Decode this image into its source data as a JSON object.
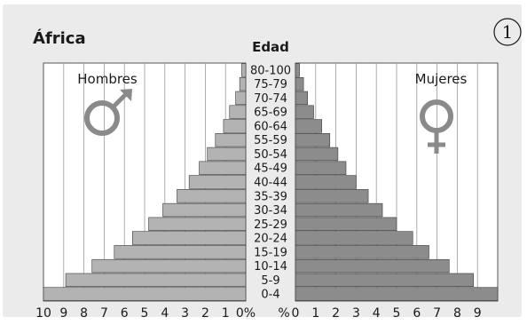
{
  "chart_data": {
    "type": "bar",
    "subtype": "population-pyramid",
    "title": "África",
    "badge": "1",
    "y_axis_title": "Edad",
    "age_groups": [
      "80-100",
      "75-79",
      "70-74",
      "65-69",
      "60-64",
      "55-59",
      "50-54",
      "45-49",
      "40-44",
      "35-39",
      "30-34",
      "25-29",
      "20-24",
      "15-19",
      "10-14",
      "5-9",
      "0-4"
    ],
    "series": [
      {
        "name": "Hombres",
        "side": "left",
        "color": "#b3b3b3",
        "values": [
          0.2,
          0.3,
          0.5,
          0.8,
          1.1,
          1.5,
          1.9,
          2.3,
          2.8,
          3.4,
          4.1,
          4.8,
          5.6,
          6.5,
          7.6,
          8.9,
          10.3
        ]
      },
      {
        "name": "Mujeres",
        "side": "right",
        "color": "#8c8c8c",
        "values": [
          0.2,
          0.4,
          0.6,
          0.9,
          1.3,
          1.7,
          2.1,
          2.5,
          3.0,
          3.6,
          4.3,
          5.0,
          5.8,
          6.6,
          7.6,
          8.8,
          10.2
        ]
      }
    ],
    "left_ticks": [
      "10",
      "9",
      "8",
      "7",
      "6",
      "5",
      "4",
      "3",
      "2",
      "1",
      "0%"
    ],
    "right_ticks": [
      "%",
      "0",
      "1",
      "2",
      "3",
      "4",
      "5",
      "6",
      "7",
      "8",
      "9"
    ],
    "xlim": [
      0,
      10
    ],
    "grid": true,
    "legend": {
      "left": "Hombres",
      "right": "Mujeres"
    }
  }
}
